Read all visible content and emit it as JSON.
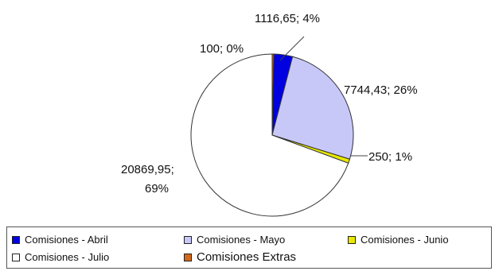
{
  "chart_data": {
    "type": "pie",
    "slices": [
      {
        "name": "Comisiones Extras",
        "value": 100,
        "percent": "0%",
        "label": "100; 0%",
        "color": "#d2691e"
      },
      {
        "name": "Comisiones - Abril",
        "value": 1116.65,
        "percent": "4%",
        "label": "1116,65; 4%",
        "color": "#0000e0"
      },
      {
        "name": "Comisiones - Mayo",
        "value": 7744.43,
        "percent": "26%",
        "label": "7744,43; 26%",
        "color": "#c8c8f8"
      },
      {
        "name": "Comisiones - Junio",
        "value": 250,
        "percent": "1%",
        "label": "250; 1%",
        "color": "#e8e800"
      },
      {
        "name": "Comisiones - Julio",
        "value": 20869.95,
        "percent": "69%",
        "label_line1": "20869,95;",
        "label_line2": "69%",
        "color": "#ffffff"
      }
    ],
    "legend": [
      "Comisiones - Abril",
      "Comisiones - Mayo",
      "Comisiones - Junio",
      "Comisiones - Julio",
      "Comisiones Extras"
    ],
    "legend_placement": "bottom"
  }
}
